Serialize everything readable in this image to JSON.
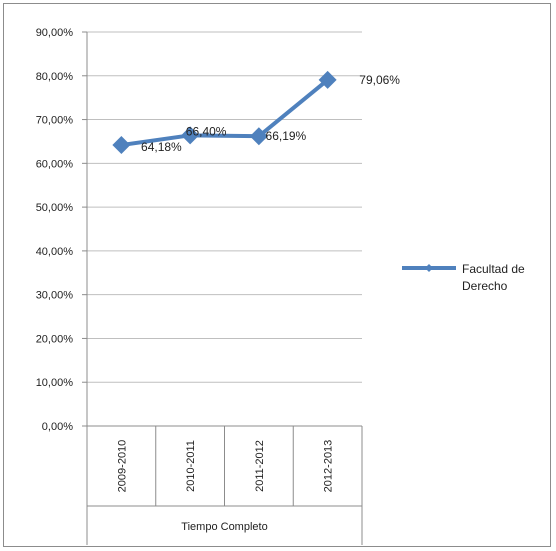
{
  "chart_data": {
    "type": "line",
    "categories": [
      "2009-2010",
      "2010-2011",
      "2011-2012",
      "2012-2013"
    ],
    "group_label": "Tiempo Completo",
    "series": [
      {
        "name": "Facultad de Derecho",
        "values": [
          64.18,
          66.4,
          66.19,
          79.06
        ],
        "labels": [
          "64,18%",
          "66,40%",
          "66,19%",
          "79,06%"
        ]
      }
    ],
    "y_ticks": [
      "0,00%",
      "10,00%",
      "20,00%",
      "30,00%",
      "40,00%",
      "50,00%",
      "60,00%",
      "70,00%",
      "80,00%",
      "90,00%"
    ],
    "ylim": [
      0,
      90
    ],
    "grid": true,
    "legend": "right",
    "legend_lines": [
      "Facultad de",
      "Derecho"
    ],
    "colors": {
      "series": "#4f81bd",
      "grid": "#bfbfbf",
      "axis": "#8c8c8c"
    }
  }
}
